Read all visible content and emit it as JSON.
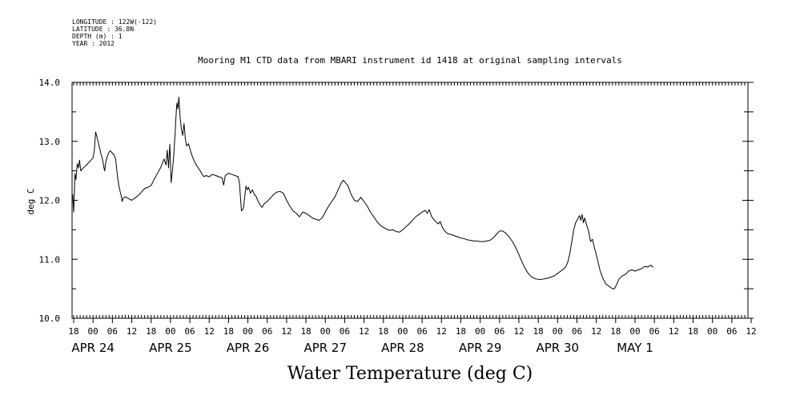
{
  "header": {
    "longitude": "LONGITUDE : 122W(-122)",
    "latitude": "LATITUDE : 36.8N",
    "depth": "DEPTH (m) : 1",
    "year": "YEAR : 2012"
  },
  "chart_data": {
    "type": "line",
    "title": "Mooring M1 CTD data from MBARI instrument id 1418 at original sampling intervals",
    "xlabel": "Water Temperature (deg C)",
    "ylabel": "deg C",
    "ylim": [
      10.0,
      14.0
    ],
    "y_ticks": [
      "10.0",
      "11.0",
      "12.0",
      "13.0",
      "14.0"
    ],
    "x_unit": "hours since 2012-04-24 00:00",
    "xlim": [
      -6.5,
      203
    ],
    "hour_ticks": [
      {
        "h": -6,
        "label": "18"
      },
      {
        "h": 0,
        "label": "00"
      },
      {
        "h": 6,
        "label": "06"
      },
      {
        "h": 12,
        "label": "12"
      },
      {
        "h": 18,
        "label": "18"
      },
      {
        "h": 24,
        "label": "00"
      },
      {
        "h": 30,
        "label": "06"
      },
      {
        "h": 36,
        "label": "12"
      },
      {
        "h": 42,
        "label": "18"
      },
      {
        "h": 48,
        "label": "00"
      },
      {
        "h": 54,
        "label": "06"
      },
      {
        "h": 60,
        "label": "12"
      },
      {
        "h": 66,
        "label": "18"
      },
      {
        "h": 72,
        "label": "00"
      },
      {
        "h": 78,
        "label": "06"
      },
      {
        "h": 84,
        "label": "12"
      },
      {
        "h": 90,
        "label": "18"
      },
      {
        "h": 96,
        "label": "00"
      },
      {
        "h": 102,
        "label": "06"
      },
      {
        "h": 108,
        "label": "12"
      },
      {
        "h": 114,
        "label": "18"
      },
      {
        "h": 120,
        "label": "00"
      },
      {
        "h": 126,
        "label": "06"
      },
      {
        "h": 132,
        "label": "12"
      },
      {
        "h": 138,
        "label": "18"
      },
      {
        "h": 144,
        "label": "00"
      },
      {
        "h": 150,
        "label": "06"
      },
      {
        "h": 156,
        "label": "12"
      },
      {
        "h": 162,
        "label": "18"
      },
      {
        "h": 168,
        "label": "00"
      },
      {
        "h": 174,
        "label": "06"
      },
      {
        "h": 180,
        "label": "12"
      },
      {
        "h": 186,
        "label": "18"
      },
      {
        "h": 192,
        "label": "00"
      },
      {
        "h": 198,
        "label": "06"
      },
      {
        "h": 204,
        "label": "12"
      }
    ],
    "day_labels": [
      {
        "h": 0,
        "label": "APR 24"
      },
      {
        "h": 24,
        "label": "APR 25"
      },
      {
        "h": 48,
        "label": "APR 26"
      },
      {
        "h": 72,
        "label": "APR 27"
      },
      {
        "h": 96,
        "label": "APR 28"
      },
      {
        "h": 120,
        "label": "APR 29"
      },
      {
        "h": 144,
        "label": "APR 30"
      },
      {
        "h": 168,
        "label": "MAY  1"
      }
    ],
    "series": [
      {
        "points": [
          [
            -6.3,
            12.1
          ],
          [
            -6.0,
            11.8
          ],
          [
            -5.6,
            12.45
          ],
          [
            -5.3,
            12.35
          ],
          [
            -4.9,
            12.62
          ],
          [
            -4.5,
            12.55
          ],
          [
            -4.2,
            12.68
          ],
          [
            -3.8,
            12.5
          ],
          [
            -3.0,
            12.55
          ],
          [
            -2.0,
            12.6
          ],
          [
            -1.0,
            12.66
          ],
          [
            0.0,
            12.72
          ],
          [
            0.4,
            12.85
          ],
          [
            0.6,
            13.0
          ],
          [
            0.8,
            13.16
          ],
          [
            1.2,
            13.08
          ],
          [
            1.8,
            12.94
          ],
          [
            2.4,
            12.8
          ],
          [
            3.0,
            12.68
          ],
          [
            3.4,
            12.55
          ],
          [
            3.6,
            12.5
          ],
          [
            4.0,
            12.66
          ],
          [
            4.4,
            12.74
          ],
          [
            4.8,
            12.8
          ],
          [
            5.3,
            12.84
          ],
          [
            6.0,
            12.8
          ],
          [
            6.6,
            12.76
          ],
          [
            7.0,
            12.7
          ],
          [
            7.2,
            12.6
          ],
          [
            7.6,
            12.4
          ],
          [
            8.0,
            12.25
          ],
          [
            8.4,
            12.15
          ],
          [
            8.8,
            12.06
          ],
          [
            9.0,
            11.98
          ],
          [
            9.4,
            12.04
          ],
          [
            10.0,
            12.06
          ],
          [
            11.0,
            12.03
          ],
          [
            12.0,
            12.0
          ],
          [
            13.0,
            12.04
          ],
          [
            14.0,
            12.08
          ],
          [
            15.0,
            12.14
          ],
          [
            16.0,
            12.2
          ],
          [
            17.0,
            12.22
          ],
          [
            18.0,
            12.25
          ],
          [
            19.0,
            12.36
          ],
          [
            20.0,
            12.46
          ],
          [
            21.0,
            12.56
          ],
          [
            22.0,
            12.7
          ],
          [
            22.6,
            12.6
          ],
          [
            23.0,
            12.85
          ],
          [
            23.4,
            12.55
          ],
          [
            23.8,
            12.95
          ],
          [
            24.2,
            12.3
          ],
          [
            24.6,
            12.5
          ],
          [
            25.0,
            12.75
          ],
          [
            25.4,
            13.1
          ],
          [
            25.8,
            13.5
          ],
          [
            26.0,
            13.65
          ],
          [
            26.3,
            13.55
          ],
          [
            26.6,
            13.75
          ],
          [
            27.0,
            13.4
          ],
          [
            27.4,
            13.2
          ],
          [
            27.8,
            13.1
          ],
          [
            28.2,
            13.3
          ],
          [
            28.6,
            13.05
          ],
          [
            29.0,
            12.92
          ],
          [
            29.6,
            12.96
          ],
          [
            30.2,
            12.84
          ],
          [
            30.8,
            12.74
          ],
          [
            31.4,
            12.66
          ],
          [
            32.0,
            12.6
          ],
          [
            32.6,
            12.55
          ],
          [
            33.2,
            12.5
          ],
          [
            33.8,
            12.44
          ],
          [
            34.4,
            12.4
          ],
          [
            35.0,
            12.42
          ],
          [
            36.0,
            12.4
          ],
          [
            37.0,
            12.44
          ],
          [
            38.0,
            12.42
          ],
          [
            39.0,
            12.4
          ],
          [
            40.0,
            12.38
          ],
          [
            40.5,
            12.26
          ],
          [
            41.0,
            12.42
          ],
          [
            42.0,
            12.46
          ],
          [
            43.0,
            12.44
          ],
          [
            44.0,
            12.42
          ],
          [
            45.0,
            12.4
          ],
          [
            45.4,
            12.28
          ],
          [
            45.7,
            12.05
          ],
          [
            46.0,
            11.82
          ],
          [
            46.6,
            11.86
          ],
          [
            47.0,
            12.05
          ],
          [
            47.4,
            12.24
          ],
          [
            47.8,
            12.18
          ],
          [
            48.2,
            12.22
          ],
          [
            48.8,
            12.12
          ],
          [
            49.4,
            12.18
          ],
          [
            50.0,
            12.1
          ],
          [
            50.6,
            12.06
          ],
          [
            51.2,
            11.98
          ],
          [
            51.8,
            11.92
          ],
          [
            52.4,
            11.88
          ],
          [
            53.0,
            11.94
          ],
          [
            54.0,
            11.98
          ],
          [
            55.0,
            12.04
          ],
          [
            56.0,
            12.1
          ],
          [
            57.0,
            12.14
          ],
          [
            58.0,
            12.15
          ],
          [
            59.0,
            12.12
          ],
          [
            60.0,
            12.0
          ],
          [
            61.0,
            11.9
          ],
          [
            62.0,
            11.82
          ],
          [
            63.0,
            11.78
          ],
          [
            64.0,
            11.72
          ],
          [
            65.0,
            11.8
          ],
          [
            66.0,
            11.78
          ],
          [
            67.0,
            11.74
          ],
          [
            68.0,
            11.7
          ],
          [
            69.0,
            11.68
          ],
          [
            70.0,
            11.66
          ],
          [
            71.0,
            11.7
          ],
          [
            72.0,
            11.8
          ],
          [
            73.0,
            11.9
          ],
          [
            74.0,
            11.98
          ],
          [
            75.0,
            12.06
          ],
          [
            76.0,
            12.18
          ],
          [
            77.0,
            12.3
          ],
          [
            77.6,
            12.34
          ],
          [
            78.2,
            12.3
          ],
          [
            79.0,
            12.25
          ],
          [
            80.0,
            12.1
          ],
          [
            81.0,
            12.0
          ],
          [
            82.0,
            11.98
          ],
          [
            83.0,
            12.05
          ],
          [
            84.0,
            11.98
          ],
          [
            85.0,
            11.9
          ],
          [
            86.0,
            11.8
          ],
          [
            87.0,
            11.72
          ],
          [
            88.0,
            11.64
          ],
          [
            89.0,
            11.58
          ],
          [
            90.0,
            11.54
          ],
          [
            91.0,
            11.51
          ],
          [
            92.0,
            11.49
          ],
          [
            93.0,
            11.5
          ],
          [
            94.0,
            11.47
          ],
          [
            95.0,
            11.46
          ],
          [
            96.0,
            11.5
          ],
          [
            97.0,
            11.55
          ],
          [
            98.0,
            11.6
          ],
          [
            99.0,
            11.66
          ],
          [
            100.0,
            11.72
          ],
          [
            101.0,
            11.76
          ],
          [
            102.0,
            11.8
          ],
          [
            103.0,
            11.83
          ],
          [
            103.6,
            11.78
          ],
          [
            104.2,
            11.84
          ],
          [
            105.0,
            11.72
          ],
          [
            106.0,
            11.65
          ],
          [
            107.0,
            11.6
          ],
          [
            107.6,
            11.64
          ],
          [
            108.2,
            11.55
          ],
          [
            109.0,
            11.48
          ],
          [
            110.0,
            11.43
          ],
          [
            111.0,
            11.42
          ],
          [
            112.0,
            11.4
          ],
          [
            113.0,
            11.38
          ],
          [
            114.0,
            11.36
          ],
          [
            115.0,
            11.35
          ],
          [
            116.0,
            11.33
          ],
          [
            117.0,
            11.32
          ],
          [
            118.0,
            11.31
          ],
          [
            119.0,
            11.31
          ],
          [
            120.0,
            11.3
          ],
          [
            121.0,
            11.3
          ],
          [
            122.0,
            11.31
          ],
          [
            123.0,
            11.32
          ],
          [
            124.0,
            11.36
          ],
          [
            125.0,
            11.42
          ],
          [
            126.0,
            11.48
          ],
          [
            127.0,
            11.48
          ],
          [
            128.0,
            11.44
          ],
          [
            129.0,
            11.38
          ],
          [
            130.0,
            11.3
          ],
          [
            131.0,
            11.2
          ],
          [
            132.0,
            11.08
          ],
          [
            133.0,
            10.95
          ],
          [
            134.0,
            10.84
          ],
          [
            135.0,
            10.75
          ],
          [
            136.0,
            10.7
          ],
          [
            137.0,
            10.67
          ],
          [
            138.0,
            10.66
          ],
          [
            139.0,
            10.66
          ],
          [
            140.0,
            10.67
          ],
          [
            141.0,
            10.68
          ],
          [
            142.0,
            10.7
          ],
          [
            143.0,
            10.72
          ],
          [
            144.0,
            10.76
          ],
          [
            145.0,
            10.8
          ],
          [
            146.0,
            10.84
          ],
          [
            146.6,
            10.88
          ],
          [
            147.2,
            10.96
          ],
          [
            147.8,
            11.1
          ],
          [
            148.4,
            11.3
          ],
          [
            149.0,
            11.5
          ],
          [
            149.6,
            11.62
          ],
          [
            150.2,
            11.68
          ],
          [
            150.8,
            11.74
          ],
          [
            151.2,
            11.66
          ],
          [
            151.6,
            11.76
          ],
          [
            152.0,
            11.62
          ],
          [
            152.4,
            11.7
          ],
          [
            153.0,
            11.58
          ],
          [
            153.6,
            11.48
          ],
          [
            154.2,
            11.3
          ],
          [
            154.8,
            11.34
          ],
          [
            155.4,
            11.2
          ],
          [
            156.0,
            11.08
          ],
          [
            156.6,
            10.94
          ],
          [
            157.2,
            10.8
          ],
          [
            158.0,
            10.68
          ],
          [
            159.0,
            10.58
          ],
          [
            160.0,
            10.54
          ],
          [
            161.0,
            10.5
          ],
          [
            161.6,
            10.5
          ],
          [
            162.2,
            10.56
          ],
          [
            163.0,
            10.66
          ],
          [
            164.0,
            10.72
          ],
          [
            165.0,
            10.74
          ],
          [
            166.0,
            10.8
          ],
          [
            167.0,
            10.82
          ],
          [
            168.0,
            10.8
          ],
          [
            169.0,
            10.82
          ],
          [
            170.0,
            10.84
          ],
          [
            171.0,
            10.88
          ],
          [
            172.0,
            10.87
          ],
          [
            173.0,
            10.9
          ],
          [
            173.6,
            10.86
          ]
        ]
      }
    ]
  }
}
